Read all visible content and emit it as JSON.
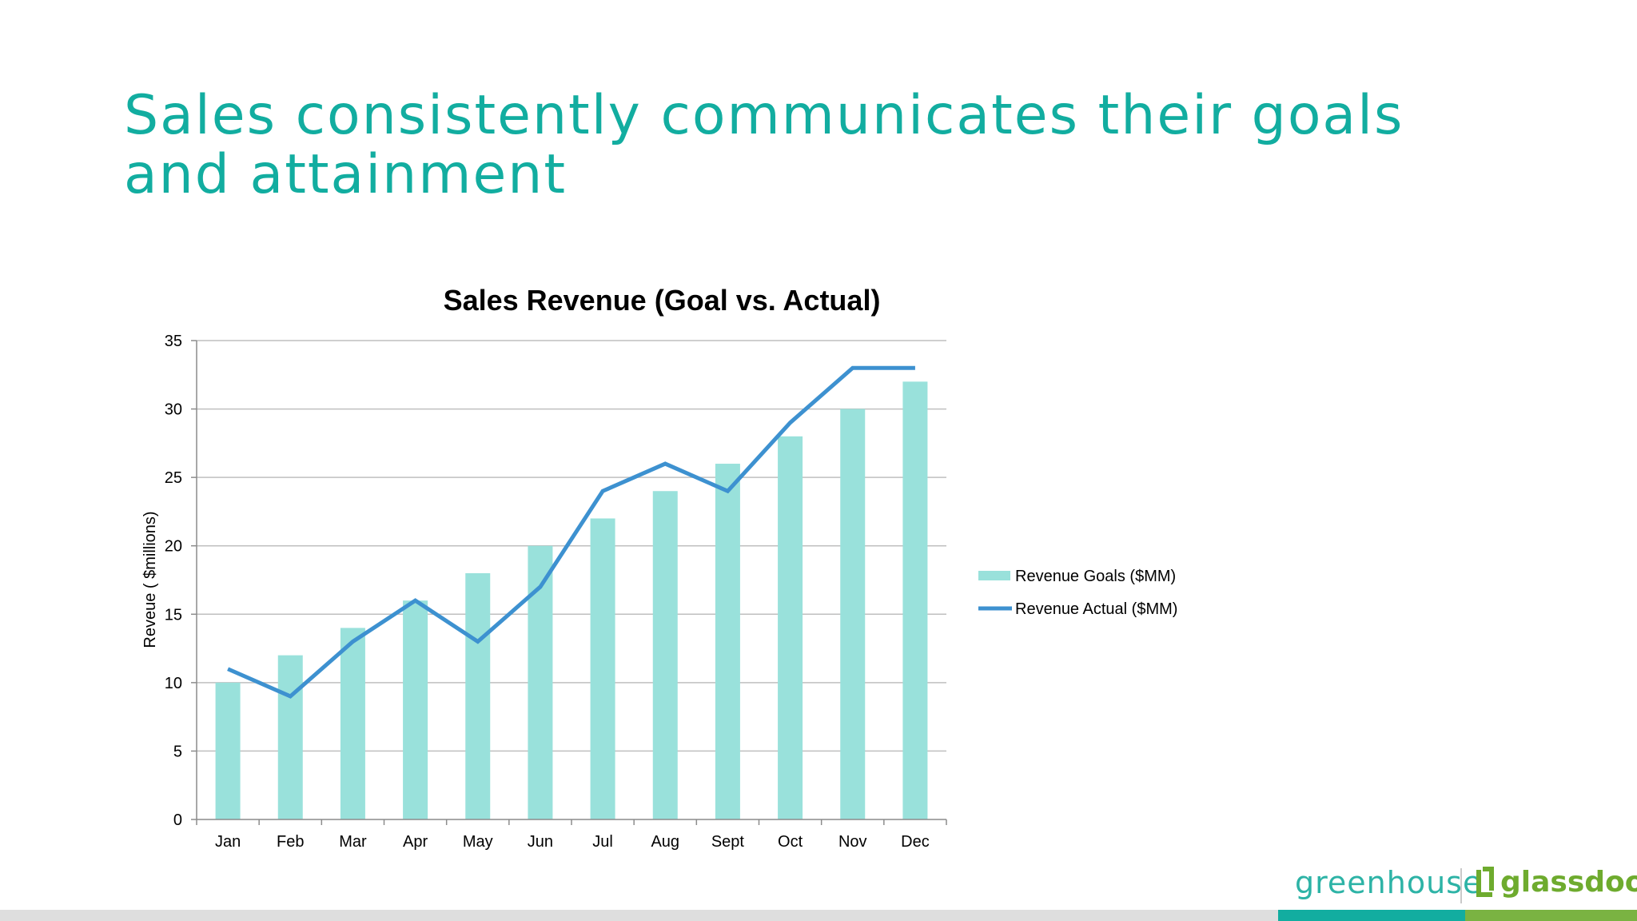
{
  "slide": {
    "title": "Sales consistently communicates their goals and attainment"
  },
  "colors": {
    "title": "#12ada0",
    "bars": "#99e1db",
    "line": "#3d91d0",
    "gridline": "#bfbfbf",
    "footer_teal": "#12ada0",
    "footer_green": "#7ab342",
    "footer_gray": "#dedede"
  },
  "logos": {
    "greenhouse": "greenhouse",
    "glassdoor": "glassdoor",
    "glassdoor_icon": "glassdoor-door-icon"
  },
  "chart_data": {
    "type": "bar",
    "title": "Sales Revenue (Goal vs. Actual)",
    "xlabel": "",
    "ylabel": "Reveue ( $millions)",
    "ylim": [
      0,
      35
    ],
    "yticks": [
      0,
      5,
      10,
      15,
      20,
      25,
      30,
      35
    ],
    "grid": true,
    "legend_position": "right",
    "categories": [
      "Jan",
      "Feb",
      "Mar",
      "Apr",
      "May",
      "Jun",
      "Jul",
      "Aug",
      "Sept",
      "Oct",
      "Nov",
      "Dec"
    ],
    "series": [
      {
        "name": "Revenue Goals ($MM)",
        "type": "bar",
        "values": [
          10,
          12,
          14,
          16,
          18,
          20,
          22,
          24,
          26,
          28,
          30,
          32
        ]
      },
      {
        "name": "Revenue Actual ($MM)",
        "type": "line",
        "values": [
          11,
          9,
          13,
          16,
          13,
          17,
          24,
          26,
          24,
          29,
          33,
          33
        ]
      }
    ]
  }
}
